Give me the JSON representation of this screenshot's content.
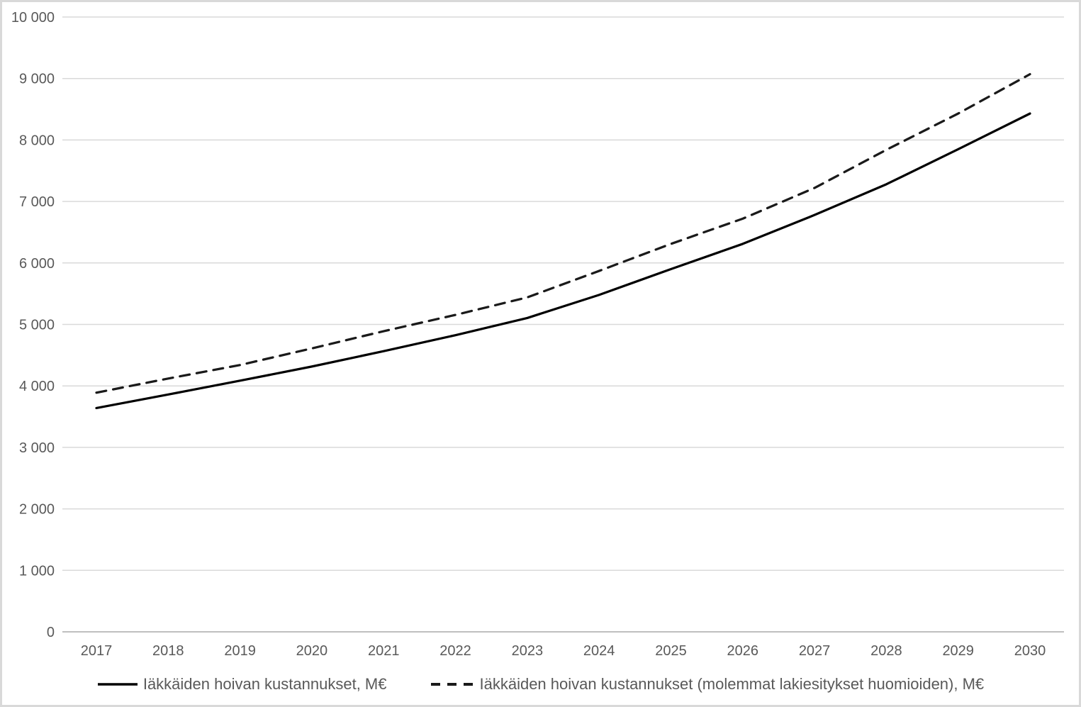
{
  "chart_data": {
    "type": "line",
    "x": [
      2017,
      2018,
      2019,
      2020,
      2021,
      2022,
      2023,
      2024,
      2025,
      2026,
      2027,
      2028,
      2029,
      2030
    ],
    "series": [
      {
        "name": "Iäkkäiden hoivan kustannukset, M€",
        "style": "solid",
        "color": "#000000",
        "values": [
          3640,
          3860,
          4085,
          4315,
          4565,
          4825,
          5105,
          5480,
          5900,
          6310,
          6780,
          7280,
          7850,
          8430
        ]
      },
      {
        "name": "Iäkkäiden hoivan kustannukset (molemmat lakiesitykset huomioiden), M€",
        "style": "dashed",
        "color": "#1a1a1a",
        "values": [
          3890,
          4120,
          4340,
          4610,
          4890,
          5155,
          5440,
          5870,
          6310,
          6720,
          7220,
          7840,
          8430,
          9070
        ]
      }
    ],
    "title": "",
    "xlabel": "",
    "ylabel": "",
    "ylim": [
      0,
      10000
    ],
    "ytick_step": 1000,
    "ytick_labels": [
      "0",
      "1 000",
      "2 000",
      "3 000",
      "4 000",
      "5 000",
      "6 000",
      "7 000",
      "8 000",
      "9 000",
      "10 000"
    ],
    "grid": "horizontal",
    "legend_position": "bottom",
    "colors": {
      "grid": "#d9d9d9",
      "axis": "#bfbfbf",
      "tick_text": "#595959",
      "background": "#ffffff",
      "border": "#d9d9d9"
    }
  },
  "legend": {
    "items": [
      {
        "label": "Iäkkäiden hoivan kustannukset, M€",
        "marker": "solid-line"
      },
      {
        "label": "Iäkkäiden hoivan kustannukset (molemmat lakiesitykset huomioiden), M€",
        "marker": "dashed-line"
      }
    ]
  }
}
